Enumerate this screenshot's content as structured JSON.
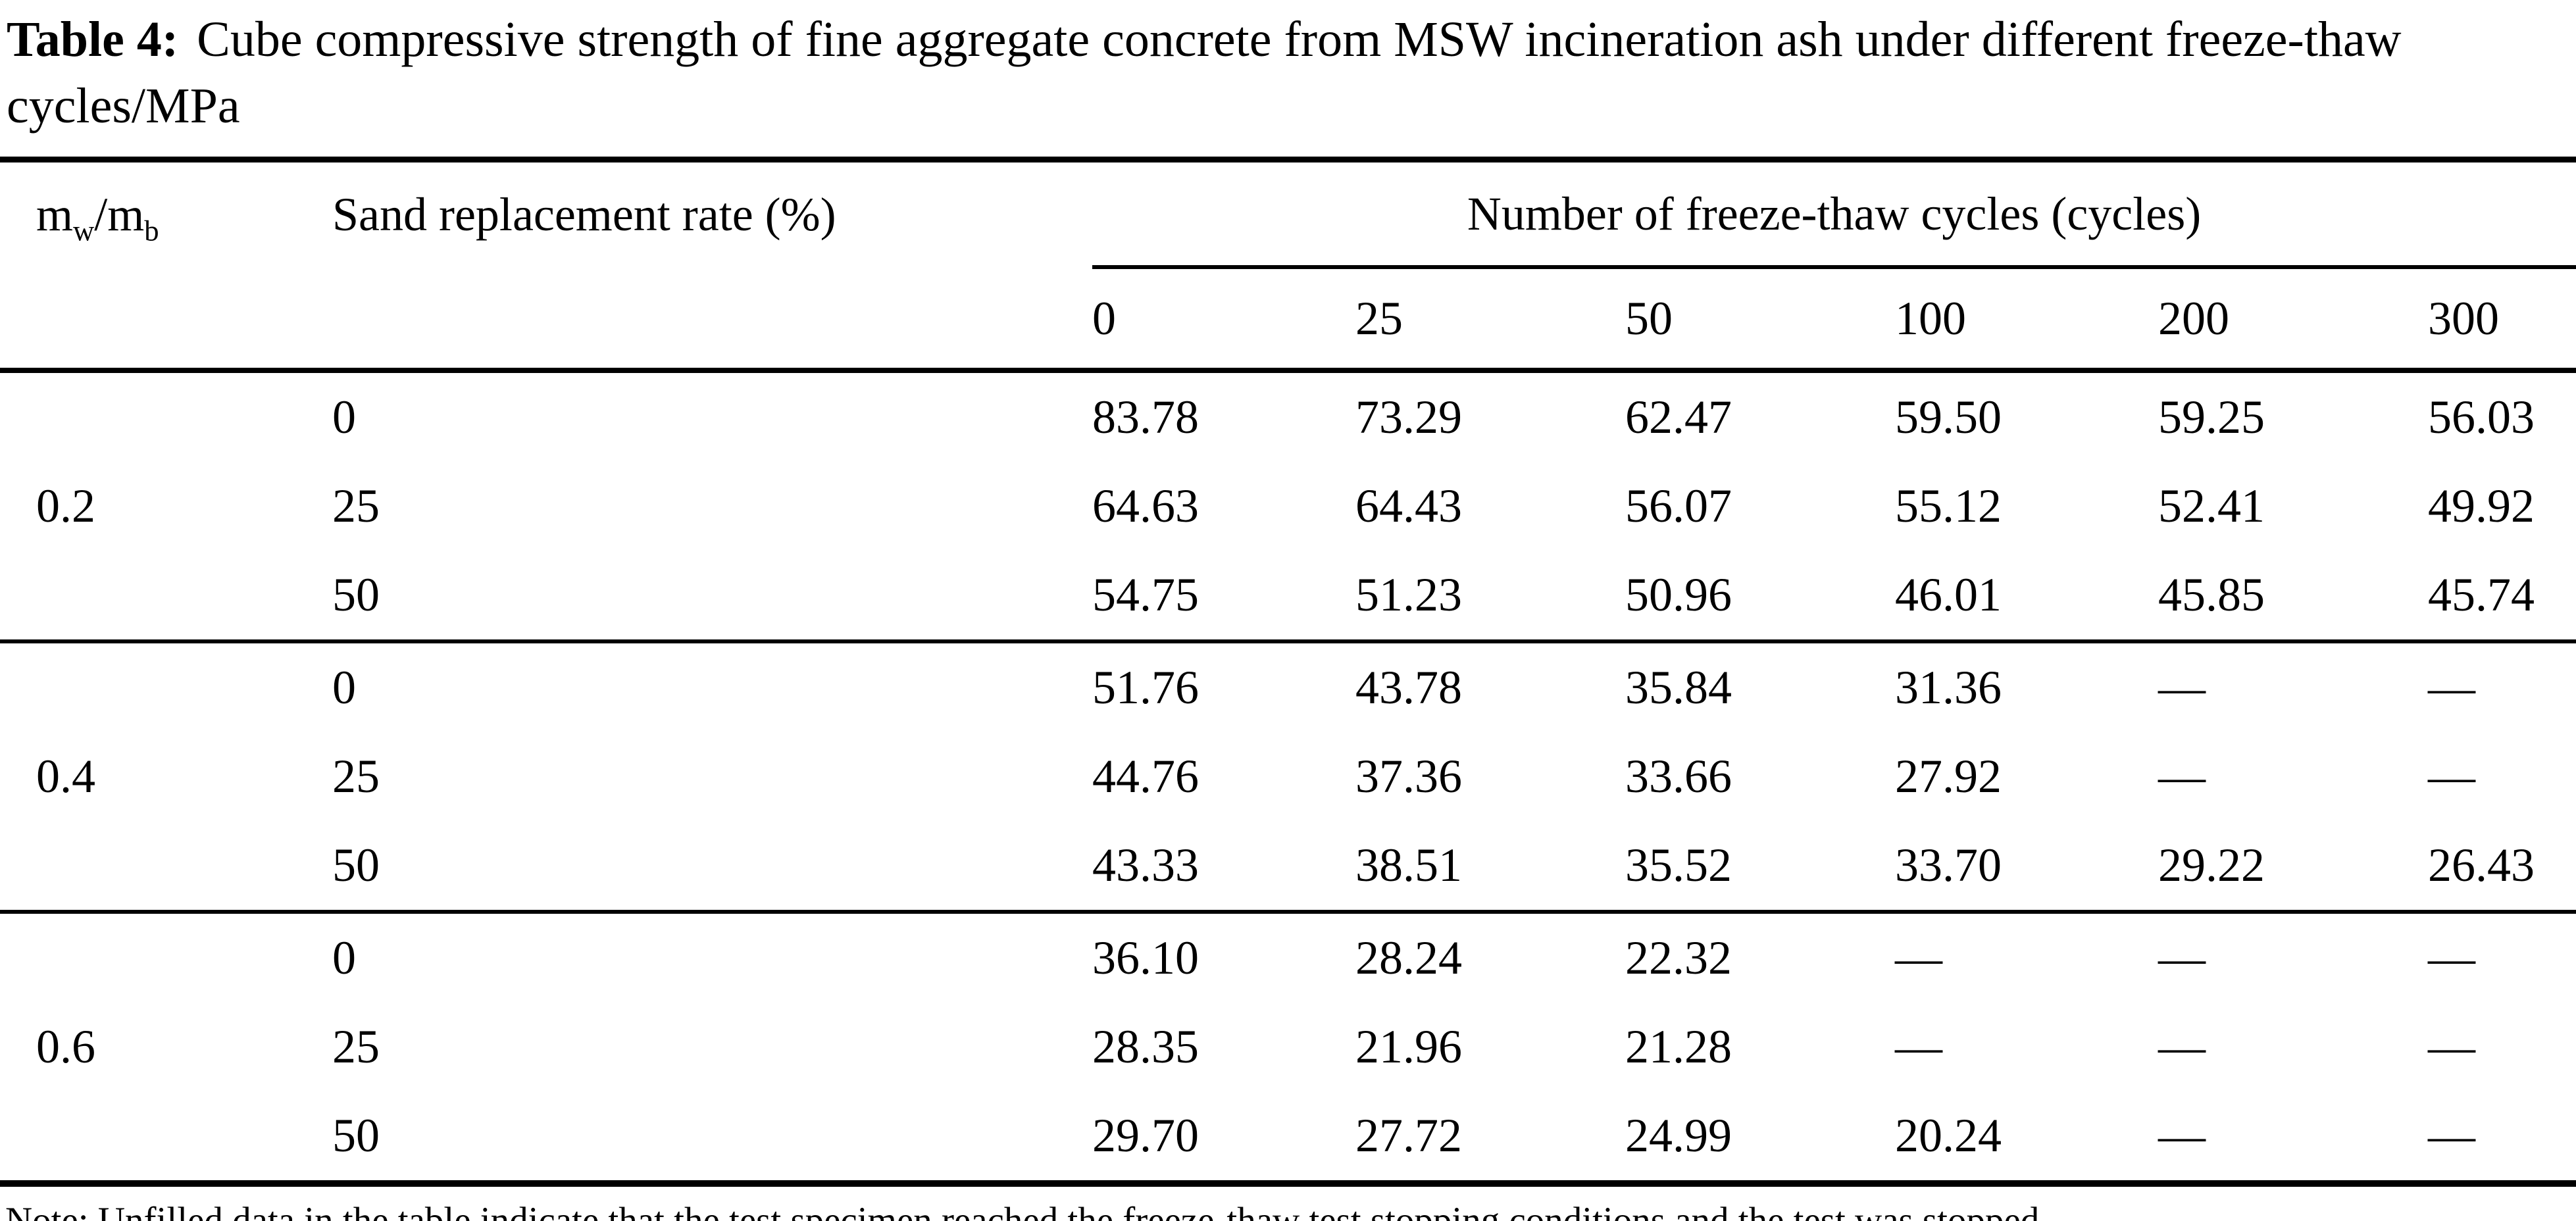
{
  "caption": {
    "label": "Table 4:",
    "text": "Cube compressive strength of fine aggregate concrete from MSW incineration ash under different freeze-thaw cycles/MPa"
  },
  "table": {
    "col1_header": {
      "m1": "m",
      "s1": "w",
      "m2": "/m",
      "s2": "b"
    },
    "col2_header": "Sand replacement rate (%)",
    "spanner": "Number of freeze-thaw cycles (cycles)",
    "cycle_headers": [
      "0",
      "25",
      "50",
      "100",
      "200",
      "300"
    ],
    "groups": [
      {
        "ratio": "0.2",
        "rows": [
          {
            "rate": "0",
            "values": [
              "83.78",
              "73.29",
              "62.47",
              "59.50",
              "59.25",
              "56.03"
            ]
          },
          {
            "rate": "25",
            "values": [
              "64.63",
              "64.43",
              "56.07",
              "55.12",
              "52.41",
              "49.92"
            ]
          },
          {
            "rate": "50",
            "values": [
              "54.75",
              "51.23",
              "50.96",
              "46.01",
              "45.85",
              "45.74"
            ]
          }
        ]
      },
      {
        "ratio": "0.4",
        "rows": [
          {
            "rate": "0",
            "values": [
              "51.76",
              "43.78",
              "35.84",
              "31.36",
              "—",
              "—"
            ]
          },
          {
            "rate": "25",
            "values": [
              "44.76",
              "37.36",
              "33.66",
              "27.92",
              "—",
              "—"
            ]
          },
          {
            "rate": "50",
            "values": [
              "43.33",
              "38.51",
              "35.52",
              "33.70",
              "29.22",
              "26.43"
            ]
          }
        ]
      },
      {
        "ratio": "0.6",
        "rows": [
          {
            "rate": "0",
            "values": [
              "36.10",
              "28.24",
              "22.32",
              "—",
              "—",
              "—"
            ]
          },
          {
            "rate": "25",
            "values": [
              "28.35",
              "21.96",
              "21.28",
              "—",
              "—",
              "—"
            ]
          },
          {
            "rate": "50",
            "values": [
              "29.70",
              "27.72",
              "24.99",
              "20.24",
              "—",
              "—"
            ]
          }
        ]
      }
    ]
  },
  "note": "Note: Unfilled data in the table indicate that the test specimen reached the freeze-thaw test stopping conditions and the test was stopped."
}
